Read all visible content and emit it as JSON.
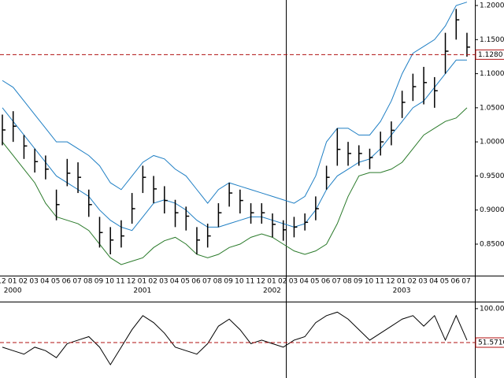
{
  "chart_data": [
    {
      "type": "ohlc",
      "categories": [
        "12",
        "01",
        "02",
        "03",
        "04",
        "05",
        "06",
        "07",
        "08",
        "09",
        "10",
        "11",
        "12",
        "01",
        "02",
        "03",
        "04",
        "05",
        "06",
        "07",
        "08",
        "09",
        "10",
        "11",
        "12",
        "01",
        "02",
        "03",
        "04",
        "05",
        "06",
        "07",
        "08",
        "09",
        "10",
        "11",
        "12",
        "01",
        "02",
        "03",
        "04",
        "05",
        "06",
        "07"
      ],
      "year_labels": [
        "2000",
        "2001",
        "2002",
        "2003"
      ],
      "high": [
        1.04,
        1.045,
        1.01,
        0.99,
        0.98,
        0.93,
        0.975,
        0.97,
        0.93,
        0.89,
        0.875,
        0.885,
        0.925,
        0.965,
        0.95,
        0.935,
        0.915,
        0.905,
        0.875,
        0.88,
        0.91,
        0.94,
        0.93,
        0.91,
        0.91,
        0.895,
        0.885,
        0.89,
        0.895,
        0.92,
        0.965,
        1.02,
        1.0,
        0.995,
        0.99,
        1.015,
        1.03,
        1.075,
        1.1,
        1.11,
        1.095,
        1.16,
        1.195,
        1.16
      ],
      "low": [
        0.995,
        1.0,
        0.975,
        0.955,
        0.945,
        0.885,
        0.935,
        0.925,
        0.89,
        0.845,
        0.835,
        0.845,
        0.88,
        0.925,
        0.91,
        0.895,
        0.875,
        0.87,
        0.835,
        0.845,
        0.875,
        0.905,
        0.895,
        0.88,
        0.88,
        0.86,
        0.855,
        0.86,
        0.87,
        0.885,
        0.93,
        0.965,
        0.965,
        0.965,
        0.96,
        0.98,
        0.995,
        1.035,
        1.06,
        1.055,
        1.05,
        1.1,
        1.15,
        1.125
      ],
      "close": [
        1.0175,
        1.023,
        0.994,
        0.971,
        0.96,
        0.908,
        0.954,
        0.948,
        0.908,
        0.867,
        0.856,
        0.862,
        0.902,
        0.948,
        0.931,
        0.914,
        0.896,
        0.891,
        0.856,
        0.862,
        0.896,
        0.925,
        0.914,
        0.896,
        0.896,
        0.879,
        0.871,
        0.875,
        0.882,
        0.902,
        0.948,
        0.989,
        0.983,
        0.983,
        0.977,
        1.0,
        1.017,
        1.058,
        1.081,
        1.087,
        1.075,
        1.133,
        1.179,
        1.139
      ],
      "upper_band": [
        1.09,
        1.08,
        1.06,
        1.04,
        1.02,
        1.0,
        1.0,
        0.99,
        0.98,
        0.965,
        0.94,
        0.93,
        0.95,
        0.97,
        0.98,
        0.975,
        0.96,
        0.95,
        0.93,
        0.91,
        0.93,
        0.94,
        0.935,
        0.93,
        0.925,
        0.92,
        0.915,
        0.91,
        0.92,
        0.95,
        1.0,
        1.02,
        1.02,
        1.01,
        1.01,
        1.03,
        1.06,
        1.1,
        1.13,
        1.14,
        1.15,
        1.17,
        1.2,
        1.205
      ],
      "middle_band": [
        1.05,
        1.03,
        1.01,
        0.99,
        0.97,
        0.95,
        0.94,
        0.93,
        0.92,
        0.9,
        0.885,
        0.875,
        0.87,
        0.89,
        0.91,
        0.915,
        0.91,
        0.9,
        0.885,
        0.875,
        0.875,
        0.88,
        0.885,
        0.89,
        0.89,
        0.885,
        0.88,
        0.875,
        0.88,
        0.9,
        0.93,
        0.95,
        0.96,
        0.97,
        0.975,
        0.99,
        1.01,
        1.03,
        1.05,
        1.06,
        1.08,
        1.1,
        1.12,
        1.12
      ],
      "lower_band": [
        1.0,
        0.98,
        0.96,
        0.94,
        0.91,
        0.89,
        0.885,
        0.88,
        0.87,
        0.85,
        0.83,
        0.82,
        0.825,
        0.83,
        0.845,
        0.855,
        0.86,
        0.85,
        0.835,
        0.83,
        0.835,
        0.845,
        0.85,
        0.86,
        0.865,
        0.86,
        0.85,
        0.84,
        0.835,
        0.84,
        0.85,
        0.88,
        0.92,
        0.95,
        0.955,
        0.955,
        0.96,
        0.97,
        0.99,
        1.01,
        1.02,
        1.03,
        1.035,
        1.05
      ],
      "band_color": "#1f7fc4",
      "lower_color": "#2a7a2a",
      "bar_color": "#000000",
      "ylim": [
        0.8038,
        1.2081
      ],
      "yticks": [
        {
          "value": 0.85,
          "label": "0.8500"
        },
        {
          "value": 0.9,
          "label": "0.9000"
        },
        {
          "value": 0.95,
          "label": "0.9500"
        },
        {
          "value": 1.0,
          "label": "1.0000"
        },
        {
          "value": 1.05,
          "label": "1.0500"
        },
        {
          "value": 1.1,
          "label": "1.1000"
        },
        {
          "value": 1.15,
          "label": "1.1500"
        },
        {
          "value": 1.2,
          "label": "1.2000"
        }
      ],
      "level": {
        "value": 1.128,
        "label": "1.1280",
        "color": "#b01010"
      }
    },
    {
      "type": "line",
      "values": [
        45,
        40,
        35,
        45,
        40,
        30,
        50,
        55,
        60,
        45,
        20,
        45,
        70,
        90,
        80,
        65,
        45,
        40,
        35,
        50,
        75,
        85,
        70,
        50,
        55,
        50,
        45,
        55,
        60,
        80,
        90,
        95,
        85,
        70,
        55,
        65,
        75,
        85,
        90,
        75,
        90,
        55,
        90,
        55
      ],
      "color": "#000000",
      "ylim": [
        1,
        110
      ],
      "yticks": [
        {
          "value": 100,
          "label": "100.00"
        }
      ],
      "level": {
        "value": 51.571,
        "label": "51.5710",
        "color": "#b01010"
      }
    }
  ]
}
